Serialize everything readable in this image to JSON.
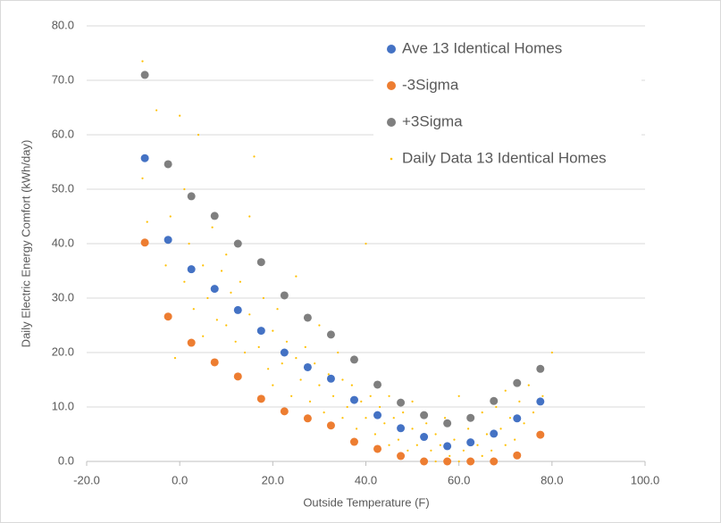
{
  "chart_data": {
    "type": "scatter",
    "x_label": "Outside Temperature (F)",
    "y_label": "Daily Electric Energy Comfort (kWh/day)",
    "xlim": [
      -20,
      100
    ],
    "ylim": [
      0,
      80
    ],
    "xticks": [
      {
        "value": -20,
        "label": "-20.0"
      },
      {
        "value": 0,
        "label": "0.0"
      },
      {
        "value": 20,
        "label": "20.0"
      },
      {
        "value": 40,
        "label": "40.0"
      },
      {
        "value": 60,
        "label": "60.0"
      },
      {
        "value": 80,
        "label": "80.0"
      },
      {
        "value": 100,
        "label": "100.0"
      }
    ],
    "yticks": [
      {
        "value": 0,
        "label": "0.0"
      },
      {
        "value": 10,
        "label": "10.0"
      },
      {
        "value": 20,
        "label": "20.0"
      },
      {
        "value": 30,
        "label": "30.0"
      },
      {
        "value": 40,
        "label": "40.0"
      },
      {
        "value": 50,
        "label": "50.0"
      },
      {
        "value": 60,
        "label": "60.0"
      },
      {
        "value": 70,
        "label": "70.0"
      },
      {
        "value": 80,
        "label": "80.0"
      }
    ],
    "grid": true,
    "legend": "upper right",
    "series": [
      {
        "name": "Ave 13 Identical Homes",
        "color": "#4472c4",
        "marker": "large",
        "x": [
          -7.5,
          -2.5,
          2.5,
          7.5,
          12.5,
          17.5,
          22.5,
          27.5,
          32.5,
          37.5,
          42.5,
          47.5,
          52.5,
          57.5,
          62.5,
          67.5,
          72.5,
          77.5
        ],
        "values": [
          55.7,
          40.7,
          35.3,
          31.7,
          27.8,
          24.0,
          20.0,
          17.3,
          15.2,
          11.3,
          8.5,
          6.1,
          4.5,
          2.8,
          3.5,
          5.1,
          7.9,
          11.0
        ]
      },
      {
        "name": "-3Sigma",
        "color": "#ed7d31",
        "marker": "large",
        "x": [
          -7.5,
          -2.5,
          2.5,
          7.5,
          12.5,
          17.5,
          22.5,
          27.5,
          32.5,
          37.5,
          42.5,
          47.5,
          52.5,
          57.5,
          62.5,
          67.5,
          72.5,
          77.5
        ],
        "values": [
          40.2,
          26.6,
          21.8,
          18.2,
          15.6,
          11.5,
          9.2,
          7.9,
          6.6,
          3.6,
          2.3,
          1.0,
          0,
          0,
          0,
          0,
          1.1,
          4.9
        ]
      },
      {
        "name": "+3Sigma",
        "color": "#7f7f7f",
        "marker": "large",
        "x": [
          -7.5,
          -2.5,
          2.5,
          7.5,
          12.5,
          17.5,
          22.5,
          27.5,
          32.5,
          37.5,
          42.5,
          47.5,
          52.5,
          57.5,
          62.5,
          67.5,
          72.5,
          77.5
        ],
        "values": [
          71.0,
          54.6,
          48.7,
          45.1,
          40.0,
          36.6,
          30.5,
          26.4,
          23.3,
          18.7,
          14.1,
          10.8,
          8.5,
          7.0,
          8.0,
          11.1,
          14.4,
          17.0
        ]
      },
      {
        "name": "Daily Data 13 Identical Homes",
        "color": "#ffc000",
        "marker": "small",
        "x": [
          -8,
          -8,
          -7,
          -5,
          -3,
          -2,
          -1,
          0,
          1,
          1,
          2,
          3,
          4,
          5,
          5,
          6,
          7,
          8,
          9,
          10,
          10,
          11,
          12,
          13,
          14,
          15,
          15,
          16,
          17,
          18,
          19,
          20,
          20,
          21,
          22,
          23,
          24,
          25,
          25,
          26,
          27,
          28,
          29,
          30,
          30,
          31,
          32,
          33,
          34,
          35,
          35,
          36,
          37,
          38,
          39,
          40,
          40,
          41,
          42,
          43,
          44,
          45,
          45,
          46,
          47,
          48,
          49,
          50,
          50,
          51,
          52,
          53,
          54,
          55,
          55,
          56,
          57,
          58,
          59,
          60,
          60,
          61,
          62,
          63,
          64,
          65,
          65,
          66,
          67,
          68,
          69,
          70,
          70,
          71,
          72,
          73,
          74,
          75,
          76,
          77,
          78,
          80
        ],
        "values": [
          73.5,
          52,
          44,
          64.5,
          36,
          45,
          19,
          63.5,
          33,
          50,
          40,
          28,
          60,
          36,
          23,
          30,
          43,
          26,
          35,
          25,
          38,
          31,
          22,
          33,
          20,
          27,
          45,
          56,
          21,
          30,
          17,
          24,
          14,
          28,
          18,
          22,
          12,
          19,
          34,
          15,
          21,
          11,
          18,
          14,
          25,
          9,
          16,
          12,
          20,
          8,
          15,
          10,
          14,
          6,
          11,
          8,
          40,
          12,
          5,
          10,
          7,
          3,
          12,
          8,
          4,
          9,
          2,
          6,
          11,
          3,
          0,
          7,
          2,
          5,
          0,
          3,
          8,
          1,
          4,
          0,
          12,
          2,
          6,
          0,
          3,
          9,
          1,
          5,
          2,
          10,
          6,
          3,
          13,
          8,
          4,
          11,
          7,
          14,
          9,
          5,
          12,
          20
        ]
      }
    ]
  }
}
